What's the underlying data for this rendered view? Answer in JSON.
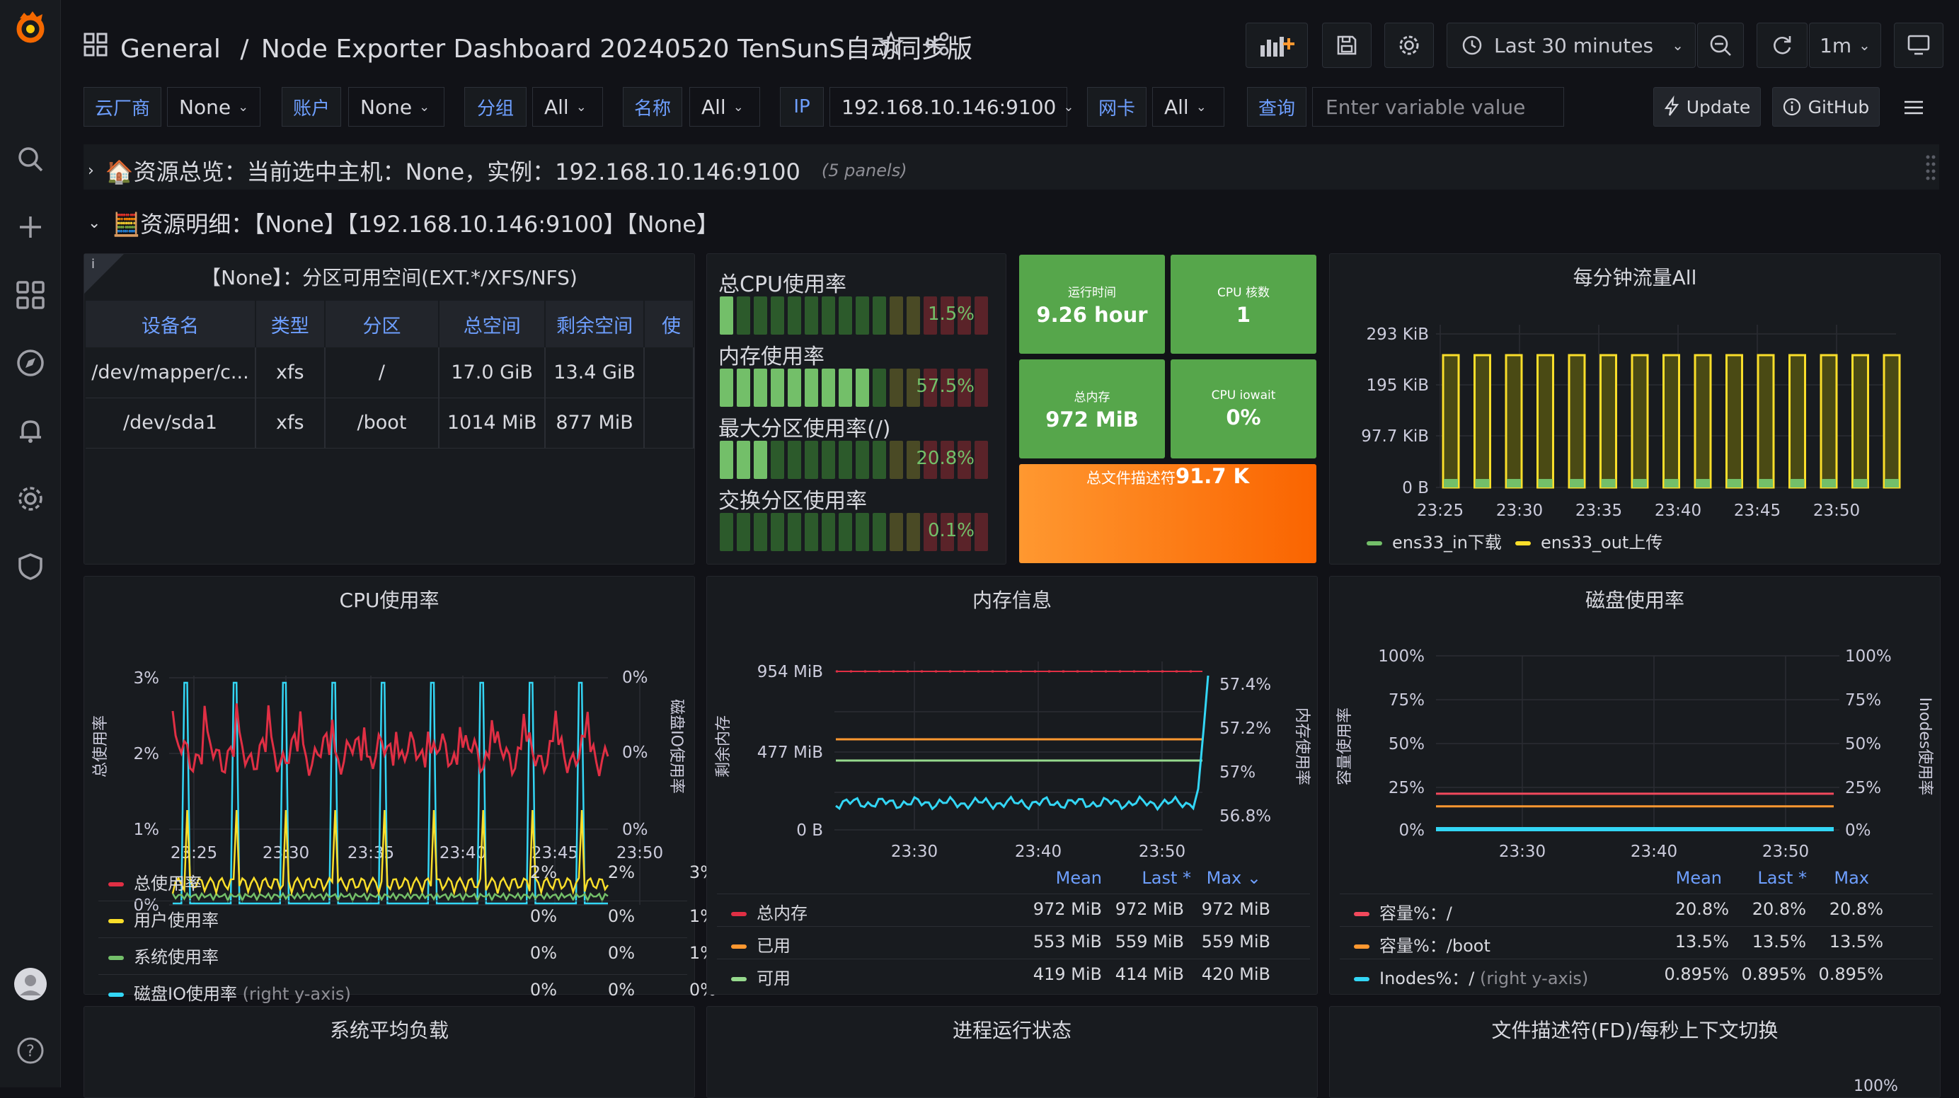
{
  "nav": {
    "breadcrumb_folder": "General",
    "breadcrumb_sep": "/",
    "dashboard_title": "Node Exporter Dashboard 20240520 TenSunS自动同步版",
    "time_range": "Last 30 minutes",
    "refresh_interval": "1m"
  },
  "variables": [
    {
      "label": "云厂商",
      "value": "None"
    },
    {
      "label": "账户",
      "value": "None"
    },
    {
      "label": "分组",
      "value": "All"
    },
    {
      "label": "名称",
      "value": "All"
    },
    {
      "label": "IP",
      "value": "192.168.10.146:9100"
    },
    {
      "label": "网卡",
      "value": "All"
    },
    {
      "label": "查询",
      "placeholder": "Enter variable value"
    }
  ],
  "links": {
    "update": "Update",
    "github": "GitHub"
  },
  "rows": {
    "overview_title": "🏠资源总览：当前选中主机：None，实例：192.168.10.146:9100",
    "overview_count": "(5 panels)",
    "detail_title": "🧮资源明细：【None】【192.168.10.146:9100】【None】"
  },
  "disk_table": {
    "title": "【None】：分区可用空间(EXT.*/XFS/NFS)",
    "columns": [
      "设备名",
      "类型",
      "分区",
      "总空间",
      "剩余空间",
      "使"
    ],
    "rows": [
      [
        "/dev/mapper/c...",
        "xfs",
        "/",
        "17.0 GiB",
        "13.4 GiB"
      ],
      [
        "/dev/sda1",
        "xfs",
        "/boot",
        "1014 MiB",
        "877 MiB"
      ]
    ]
  },
  "gauges": [
    {
      "label": "总CPU使用率",
      "value": "1.5%",
      "level": 0.015
    },
    {
      "label": "内存使用率",
      "value": "57.5%",
      "level": 0.575
    },
    {
      "label": "最大分区使用率(/)",
      "value": "20.8%",
      "level": 0.208
    },
    {
      "label": "交换分区使用率",
      "value": "0.1%",
      "level": 0.001
    }
  ],
  "stats": {
    "uptime_label": "运行时间",
    "uptime_value": "9.26 hour",
    "cores_label": "CPU 核数",
    "cores_value": "1",
    "mem_label": "总内存",
    "mem_value": "972 MiB",
    "iowait_label": "CPU iowait",
    "iowait_value": "0%",
    "fd_label": "总文件描述符",
    "fd_value": "91.7 K"
  },
  "traffic_panel": {
    "title": "每分钟流量All",
    "yticks": [
      "293 KiB",
      "195 KiB",
      "97.7 KiB",
      "0 B"
    ],
    "xticks": [
      "23:25",
      "23:30",
      "23:35",
      "23:40",
      "23:45",
      "23:50"
    ],
    "legend": [
      {
        "name": "ens33_in下载",
        "color": "#73bf69"
      },
      {
        "name": "ens33_out上传",
        "color": "#fade2a"
      }
    ]
  },
  "cpu_panel": {
    "title": "CPU使用率",
    "yleft": [
      "3%",
      "2%",
      "1%",
      "0%"
    ],
    "yright": [
      "0%",
      "0%",
      "0%"
    ],
    "ylabel_left": "总使用率",
    "ylabel_right": "磁盘IO使用率",
    "xticks": [
      "23:25",
      "23:30",
      "23:35",
      "23:40",
      "23:45",
      "23:50"
    ],
    "legend": [
      {
        "name": "总使用率",
        "note": "",
        "color": "#e02f44",
        "v": [
          "2%",
          "2%",
          "3%"
        ]
      },
      {
        "name": "用户使用率",
        "note": "",
        "color": "#fade2a",
        "v": [
          "0%",
          "0%",
          "1%"
        ]
      },
      {
        "name": "系统使用率",
        "note": "",
        "color": "#73bf69",
        "v": [
          "0%",
          "0%",
          "1%"
        ]
      },
      {
        "name": "磁盘IO使用率",
        "note": "(right y-axis)",
        "color": "#33d6f5",
        "v": [
          "0%",
          "0%",
          "0%"
        ]
      }
    ]
  },
  "mem_panel": {
    "title": "内存信息",
    "yleft": [
      "954 MiB",
      "477 MiB",
      "0 B"
    ],
    "yright": [
      "57.4%",
      "57.2%",
      "57%",
      "56.8%"
    ],
    "ylabel_left": "剩余内存",
    "ylabel_right": "内存使用率",
    "xticks": [
      "23:30",
      "23:40",
      "23:50"
    ],
    "headers": [
      "Mean",
      "Last *",
      "Max"
    ],
    "sort_arrow": "⌄",
    "legend": [
      {
        "name": "总内存",
        "color": "#e02f44",
        "v": [
          "972 MiB",
          "972 MiB",
          "972 MiB"
        ]
      },
      {
        "name": "已用",
        "color": "#ff9830",
        "v": [
          "553 MiB",
          "559 MiB",
          "559 MiB"
        ]
      },
      {
        "name": "可用",
        "color": "#96d98d",
        "v": [
          "419 MiB",
          "414 MiB",
          "420 MiB"
        ]
      }
    ]
  },
  "disk_panel": {
    "title": "磁盘使用率",
    "yleft": [
      "100%",
      "75%",
      "50%",
      "25%",
      "0%"
    ],
    "yright": [
      "100%",
      "75%",
      "50%",
      "25%",
      "0%"
    ],
    "ylabel_left": "容量使用率",
    "ylabel_right": "Inodes使用率",
    "xticks": [
      "23:30",
      "23:40",
      "23:50"
    ],
    "headers": [
      "Mean",
      "Last *",
      "Max"
    ],
    "legend": [
      {
        "name": "容量%：/",
        "note": "",
        "color": "#f2495c",
        "v": [
          "20.8%",
          "20.8%",
          "20.8%"
        ]
      },
      {
        "name": "容量%：/boot",
        "note": "",
        "color": "#ff9830",
        "v": [
          "13.5%",
          "13.5%",
          "13.5%"
        ]
      },
      {
        "name": "Inodes%：/",
        "note": "(right y-axis)",
        "color": "#33d6f5",
        "v": [
          "0.895%",
          "0.895%",
          "0.895%"
        ]
      }
    ]
  },
  "bottom_panels": {
    "load": "系统平均负载",
    "proc": "进程运行状态",
    "fd": "文件描述符(FD)/每秒上下文切换",
    "fd_ytick": "100%"
  }
}
